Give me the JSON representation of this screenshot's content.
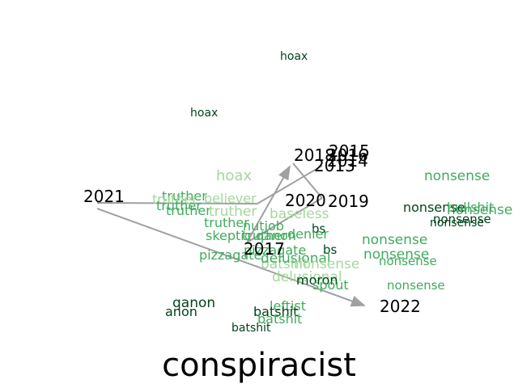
{
  "title": "conspiracist",
  "colors": {
    "arrow": "#a0a0a0",
    "year_label": "#000000",
    "dark_green": "#00441b",
    "mid_dark_green": "#1b7a3c",
    "mid_green": "#41ab5d",
    "light_green": "#a1d99b"
  },
  "years": [
    {
      "label": "2013"
    },
    {
      "label": "2014"
    },
    {
      "label": "2015"
    },
    {
      "label": "2016"
    },
    {
      "label": "2017"
    },
    {
      "label": "2018"
    },
    {
      "label": "2019"
    },
    {
      "label": "2020"
    },
    {
      "label": "2021"
    },
    {
      "label": "2022"
    }
  ],
  "words": [
    {
      "text": "hoax",
      "color": "dark_green"
    },
    {
      "text": "hoax",
      "color": "dark_green"
    },
    {
      "text": "hoax",
      "color": "light_green"
    },
    {
      "text": "nonsense",
      "color": "mid_green"
    },
    {
      "text": "truther",
      "color": "mid_green"
    },
    {
      "text": "truther",
      "color": "light_green"
    },
    {
      "text": "believer",
      "color": "light_green"
    },
    {
      "text": "truther",
      "color": "mid_green"
    },
    {
      "text": "truther",
      "color": "mid_green"
    },
    {
      "text": "truther",
      "color": "light_green"
    },
    {
      "text": "truther",
      "color": "mid_green"
    },
    {
      "text": "nutjob",
      "color": "mid_green"
    },
    {
      "text": "pizzagate",
      "color": "mid_green"
    },
    {
      "text": "nonsense",
      "color": "mid_green"
    },
    {
      "text": "nonsense",
      "color": "mid_green"
    },
    {
      "text": "nonsense",
      "color": "mid_green"
    },
    {
      "text": "nonsense",
      "color": "mid_green"
    },
    {
      "text": "nonsense",
      "color": "mid_green"
    },
    {
      "text": "nonsense",
      "color": "dark_green"
    },
    {
      "text": "nonsense",
      "color": "dark_green"
    },
    {
      "text": "nonsense",
      "color": "dark_green"
    },
    {
      "text": "bullshit",
      "color": "mid_green"
    },
    {
      "text": "bs",
      "color": "dark_green"
    },
    {
      "text": "bs",
      "color": "dark_green"
    },
    {
      "text": "truther",
      "color": "mid_green"
    },
    {
      "text": "skeptic",
      "color": "mid_green"
    },
    {
      "text": "qanon",
      "color": "mid_green"
    },
    {
      "text": "denier",
      "color": "mid_green"
    },
    {
      "text": "pizzagate",
      "color": "mid_green"
    },
    {
      "text": "batshit",
      "color": "light_green"
    },
    {
      "text": "delusional",
      "color": "mid_green"
    },
    {
      "text": "delusional",
      "color": "light_green"
    },
    {
      "text": "nonsense",
      "color": "light_green"
    },
    {
      "text": "moron",
      "color": "dark_green"
    },
    {
      "text": "spout",
      "color": "mid_green"
    },
    {
      "text": "qanon",
      "color": "dark_green"
    },
    {
      "text": "anon",
      "color": "dark_green"
    },
    {
      "text": "leftist",
      "color": "mid_green"
    },
    {
      "text": "batshit",
      "color": "dark_green"
    },
    {
      "text": "batshit",
      "color": "mid_green"
    },
    {
      "text": "batshit",
      "color": "dark_green"
    },
    {
      "text": "baseless",
      "color": "light_green"
    }
  ]
}
